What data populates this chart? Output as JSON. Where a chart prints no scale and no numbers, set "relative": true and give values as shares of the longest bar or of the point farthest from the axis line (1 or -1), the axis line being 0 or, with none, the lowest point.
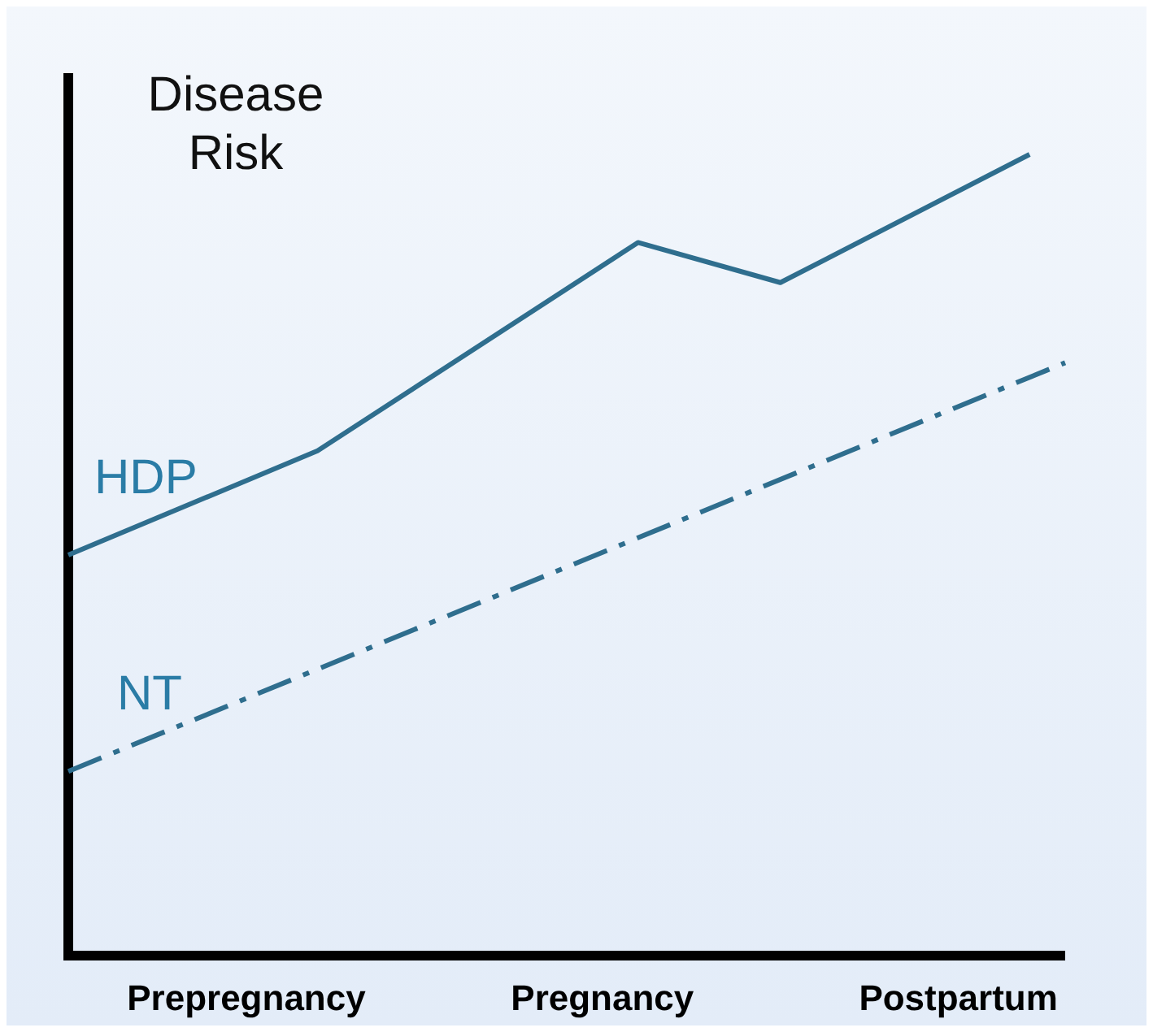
{
  "chart_data": {
    "type": "line",
    "ylabel": "Disease Risk",
    "relative": true,
    "tick_labels": "x",
    "marker": "none",
    "categories": [
      null,
      null,
      null,
      null,
      null,
      "Prepregnancy",
      null,
      null,
      null,
      null,
      null,
      null,
      null,
      null,
      null,
      "Pregnancy",
      null,
      null,
      null,
      null,
      null,
      null,
      null,
      null,
      null,
      "Postpartum",
      null,
      null,
      null
    ],
    "series": [
      {
        "name": "HDP",
        "color": "#2f6e8e",
        "line_style": "solid",
        "values": [
          0.5,
          null,
          null,
          null,
          null,
          null,
          null,
          0.63,
          null,
          null,
          null,
          null,
          null,
          null,
          null,
          null,
          0.89,
          null,
          null,
          null,
          0.84,
          null,
          null,
          null,
          null,
          null,
          null,
          1,
          null
        ]
      },
      {
        "name": "NT",
        "color": "#2f6e8e",
        "line_style": "dashed",
        "values": [
          0.23,
          null,
          null,
          null,
          null,
          null,
          null,
          null,
          null,
          null,
          null,
          null,
          null,
          null,
          null,
          null,
          null,
          null,
          null,
          null,
          null,
          null,
          null,
          null,
          null,
          null,
          null,
          null,
          0.74
        ]
      }
    ]
  }
}
